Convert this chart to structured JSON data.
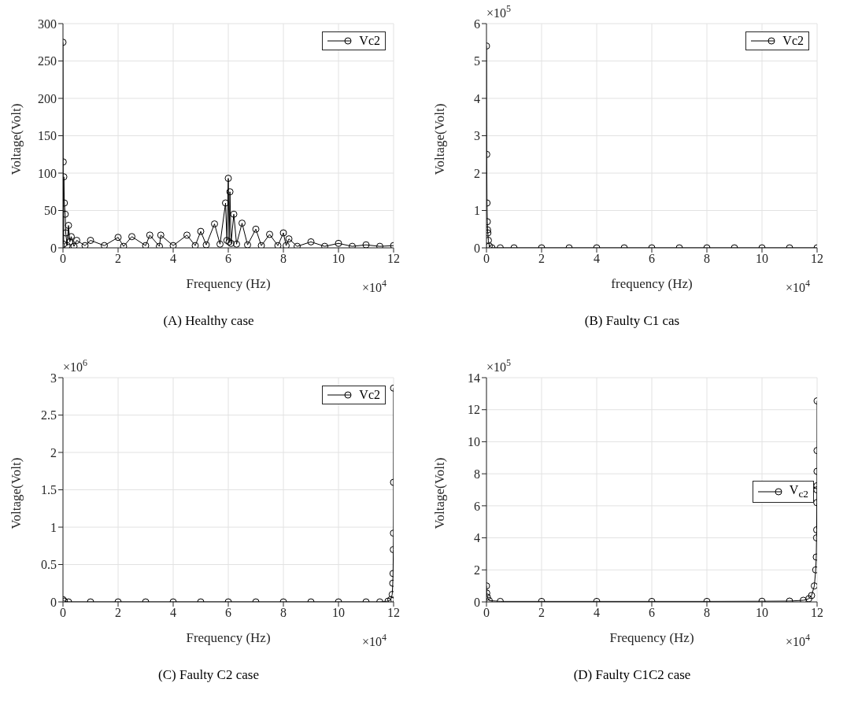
{
  "chart_data": [
    {
      "type": "line",
      "title": "(A) Healthy case",
      "xlabel": "Frequency (Hz)",
      "ylabel": "Voltage(Volt)",
      "annotations": [
        "×10$^{4}$"
      ],
      "grid": true,
      "legend": "top right",
      "marker": "circle",
      "line_style": "solid",
      "xlim": [
        0,
        12
      ],
      "xticks": [
        0,
        2,
        4,
        6,
        8,
        10,
        12
      ],
      "ylim": [
        0,
        300
      ],
      "yticks": [
        0,
        50,
        100,
        150,
        200,
        250,
        300
      ],
      "series": [
        {
          "name": "Vc2",
          "color": "#000000",
          "x": [
            0,
            0.01,
            0.02,
            0.03,
            0.05,
            0.08,
            0.1,
            0.15,
            0.2,
            0.25,
            0.3,
            0.4,
            0.5,
            0.8,
            1,
            1.5,
            2,
            2.2,
            2.5,
            3,
            3.15,
            3.5,
            3.55,
            4,
            4.5,
            4.8,
            5,
            5.2,
            5.5,
            5.7,
            5.9,
            5.95,
            6,
            6.03,
            6.06,
            6.1,
            6.2,
            6.3,
            6.5,
            6.7,
            7,
            7.2,
            7.5,
            7.8,
            8,
            8.1,
            8.2,
            8.5,
            9,
            9.5,
            10,
            10.5,
            11,
            11.5,
            12
          ],
          "values": [
            275,
            115,
            5,
            95,
            60,
            45,
            20,
            3,
            30,
            8,
            15,
            2,
            10,
            3,
            10,
            3,
            14,
            2,
            15,
            3,
            17,
            2,
            17,
            3,
            17,
            3,
            22,
            4,
            32,
            5,
            60,
            10,
            93,
            8,
            75,
            6,
            45,
            5,
            33,
            4,
            25,
            3,
            18,
            3,
            20,
            3,
            12,
            2,
            8,
            2,
            6,
            2,
            4,
            2,
            3
          ]
        }
      ]
    },
    {
      "type": "line",
      "title": "(B) Faulty C1 cas",
      "xlabel": "frequency (Hz)",
      "ylabel": "Voltage(Volt)",
      "annotations": [
        "×10$^{4}$",
        "×10$^{5}$"
      ],
      "grid": true,
      "legend": "top right",
      "marker": "circle",
      "line_style": "solid",
      "xlim": [
        0,
        12
      ],
      "xticks": [
        0,
        2,
        4,
        6,
        8,
        10,
        12
      ],
      "ylim": [
        0,
        6
      ],
      "yticks": [
        0,
        1,
        2,
        3,
        4,
        5,
        6
      ],
      "series": [
        {
          "name": "Vc2",
          "color": "#000000",
          "x": [
            0,
            0.01,
            0.02,
            0.03,
            0.04,
            0.05,
            0.07,
            0.1,
            0.2,
            0.5,
            1,
            2,
            3,
            4,
            5,
            6,
            7,
            8,
            9,
            10,
            11,
            12
          ],
          "values": [
            5.4,
            2.5,
            1.2,
            0.7,
            0.48,
            0.4,
            0.2,
            0.05,
            0,
            0,
            0,
            0,
            0,
            0,
            0,
            0,
            0,
            0,
            0,
            0,
            0,
            0
          ]
        }
      ]
    },
    {
      "type": "line",
      "title": "(C) Faulty C2 case",
      "xlabel": "Frequency (Hz)",
      "ylabel": "Voltage(Volt)",
      "annotations": [
        "×10$^{4}$",
        "×10$^{6}$"
      ],
      "grid": true,
      "legend": "top right",
      "marker": "circle",
      "line_style": "solid",
      "xlim": [
        0,
        12
      ],
      "xticks": [
        0,
        2,
        4,
        6,
        8,
        10,
        12
      ],
      "ylim": [
        0,
        3
      ],
      "yticks": [
        0,
        0.5,
        1,
        1.5,
        2,
        2.5,
        3
      ],
      "series": [
        {
          "name": "Vc2",
          "color": "#000000",
          "x": [
            0,
            0.05,
            0.2,
            1,
            2,
            3,
            4,
            5,
            6,
            7,
            8,
            9,
            10,
            11,
            11.5,
            11.8,
            11.9,
            11.95,
            11.97,
            11.98,
            11.99,
            11.995,
            11.998,
            12
          ],
          "values": [
            0.03,
            0.01,
            0,
            0,
            0,
            0,
            0,
            0,
            0,
            0,
            0,
            0,
            0,
            0,
            0,
            0.01,
            0.03,
            0.1,
            0.25,
            0.38,
            0.7,
            0.92,
            1.6,
            2.86
          ]
        }
      ]
    },
    {
      "type": "line",
      "title": "(D) Faulty C1C2 case",
      "xlabel": "Frequency (Hz)",
      "ylabel": "Voltage(Volt)",
      "annotations": [
        "×10$^{4}$",
        "×10$^{5}$"
      ],
      "grid": true,
      "legend": "right",
      "marker": "circle",
      "line_style": "solid",
      "xlim": [
        0,
        12
      ],
      "xticks": [
        0,
        2,
        4,
        6,
        8,
        10,
        12
      ],
      "ylim": [
        0,
        14
      ],
      "yticks": [
        0,
        2,
        4,
        6,
        8,
        10,
        12,
        14
      ],
      "series": [
        {
          "name": "V$_{c2}$",
          "color": "#000000",
          "x": [
            0,
            0.01,
            0.03,
            0.1,
            0.5,
            2,
            4,
            6,
            8,
            10,
            11,
            11.5,
            11.7,
            11.8,
            11.9,
            11.95,
            11.97,
            11.98,
            11.985,
            11.99,
            11.993,
            11.995,
            11.997,
            11.998,
            12
          ],
          "values": [
            1,
            0.55,
            0.3,
            0.08,
            0.03,
            0.03,
            0.03,
            0.03,
            0.03,
            0.04,
            0.05,
            0.1,
            0.2,
            0.4,
            1,
            2,
            2.8,
            4,
            4.5,
            6.2,
            7,
            7.25,
            8.15,
            9.45,
            12.55
          ]
        }
      ]
    }
  ]
}
